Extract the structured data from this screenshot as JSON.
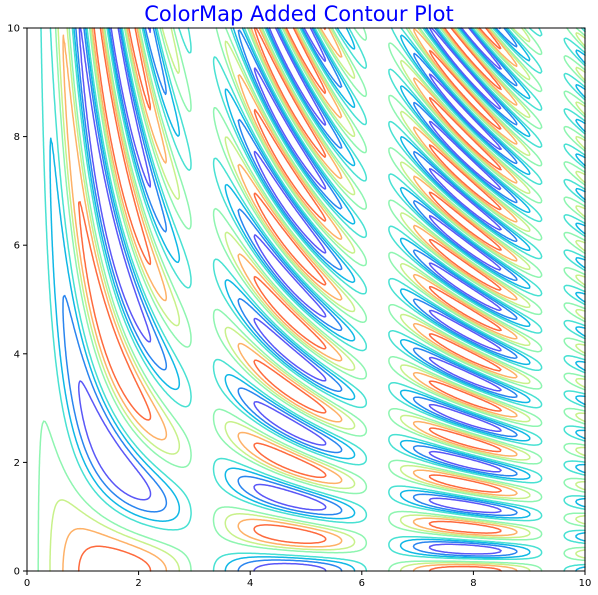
{
  "chart_data": {
    "type": "contour",
    "title": "ColorMap Added Contour Plot",
    "title_color": "#0000ff",
    "colormap": "rainbow",
    "function": "sin(x)*cos(x*y)",
    "levels": [
      -0.8,
      -0.6,
      -0.4,
      -0.2,
      0.2,
      0.4,
      0.6,
      0.8
    ],
    "level_colors": [
      "#5a57f7",
      "#2a85ef",
      "#10b8e6",
      "#48e1d2",
      "#8ef5b0",
      "#c8f18a",
      "#feb167",
      "#fe6a3d"
    ],
    "xlim": [
      0,
      10
    ],
    "ylim": [
      0,
      10
    ],
    "x_ticks": [
      0,
      2,
      4,
      6,
      8,
      10
    ],
    "y_ticks": [
      0,
      2,
      4,
      6,
      8,
      10
    ],
    "x_tick_labels": [
      "0",
      "2",
      "4",
      "6",
      "8",
      "10"
    ],
    "y_tick_labels": [
      "0",
      "2",
      "4",
      "6",
      "8",
      "10"
    ],
    "xlabel": "",
    "ylabel": "",
    "grid": false
  }
}
